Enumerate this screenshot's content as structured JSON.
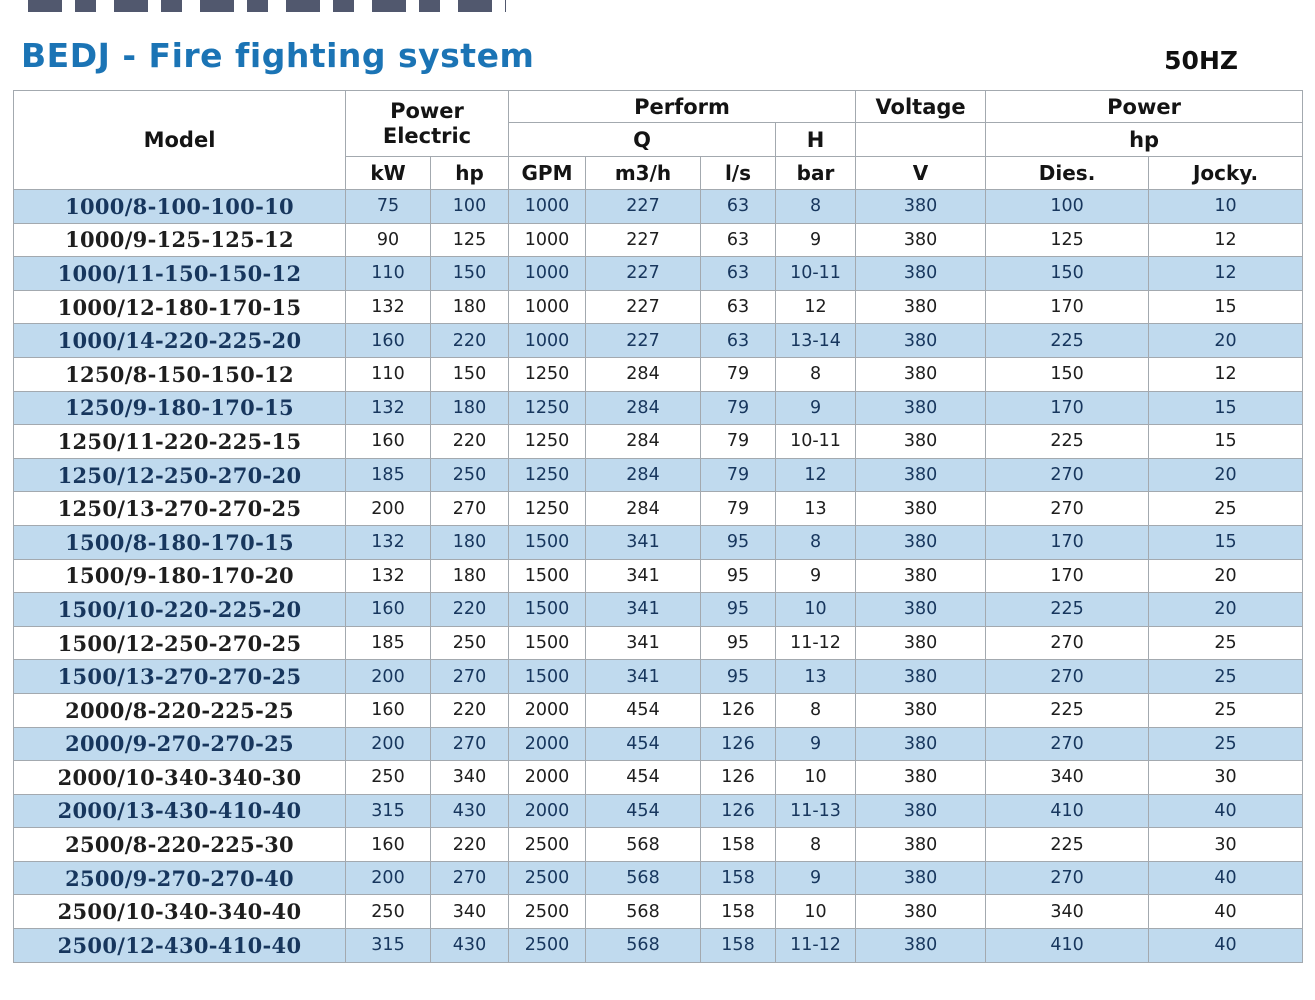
{
  "page": {
    "title": "BEDJ - Fire fighting system",
    "frequency": "50HZ"
  },
  "colors": {
    "title": "#1b74b5",
    "row_blue": "#c0daee",
    "row_blue_text": "#17365d",
    "border": "#a3a9af"
  },
  "table": {
    "header": {
      "model": "Model",
      "power_electric_line1": "Power",
      "power_electric_line2": "Electric",
      "perform": "Perform",
      "q": "Q",
      "h": "H",
      "voltage": "Voltage",
      "power": "Power",
      "hp_group": "hp",
      "units": [
        "kW",
        "hp",
        "GPM",
        "m3/h",
        "l/s",
        "bar",
        "V",
        "Dies.",
        "Jocky."
      ]
    },
    "rows": [
      [
        "1000/8-100-100-10",
        "75",
        "100",
        "1000",
        "227",
        "63",
        "8",
        "380",
        "100",
        "10"
      ],
      [
        "1000/9-125-125-12",
        "90",
        "125",
        "1000",
        "227",
        "63",
        "9",
        "380",
        "125",
        "12"
      ],
      [
        "1000/11-150-150-12",
        "110",
        "150",
        "1000",
        "227",
        "63",
        "10-11",
        "380",
        "150",
        "12"
      ],
      [
        "1000/12-180-170-15",
        "132",
        "180",
        "1000",
        "227",
        "63",
        "12",
        "380",
        "170",
        "15"
      ],
      [
        "1000/14-220-225-20",
        "160",
        "220",
        "1000",
        "227",
        "63",
        "13-14",
        "380",
        "225",
        "20"
      ],
      [
        "1250/8-150-150-12",
        "110",
        "150",
        "1250",
        "284",
        "79",
        "8",
        "380",
        "150",
        "12"
      ],
      [
        "1250/9-180-170-15",
        "132",
        "180",
        "1250",
        "284",
        "79",
        "9",
        "380",
        "170",
        "15"
      ],
      [
        "1250/11-220-225-15",
        "160",
        "220",
        "1250",
        "284",
        "79",
        "10-11",
        "380",
        "225",
        "15"
      ],
      [
        "1250/12-250-270-20",
        "185",
        "250",
        "1250",
        "284",
        "79",
        "12",
        "380",
        "270",
        "20"
      ],
      [
        "1250/13-270-270-25",
        "200",
        "270",
        "1250",
        "284",
        "79",
        "13",
        "380",
        "270",
        "25"
      ],
      [
        "1500/8-180-170-15",
        "132",
        "180",
        "1500",
        "341",
        "95",
        "8",
        "380",
        "170",
        "15"
      ],
      [
        "1500/9-180-170-20",
        "132",
        "180",
        "1500",
        "341",
        "95",
        "9",
        "380",
        "170",
        "20"
      ],
      [
        "1500/10-220-225-20",
        "160",
        "220",
        "1500",
        "341",
        "95",
        "10",
        "380",
        "225",
        "20"
      ],
      [
        "1500/12-250-270-25",
        "185",
        "250",
        "1500",
        "341",
        "95",
        "11-12",
        "380",
        "270",
        "25"
      ],
      [
        "1500/13-270-270-25",
        "200",
        "270",
        "1500",
        "341",
        "95",
        "13",
        "380",
        "270",
        "25"
      ],
      [
        "2000/8-220-225-25",
        "160",
        "220",
        "2000",
        "454",
        "126",
        "8",
        "380",
        "225",
        "25"
      ],
      [
        "2000/9-270-270-25",
        "200",
        "270",
        "2000",
        "454",
        "126",
        "9",
        "380",
        "270",
        "25"
      ],
      [
        "2000/10-340-340-30",
        "250",
        "340",
        "2000",
        "454",
        "126",
        "10",
        "380",
        "340",
        "30"
      ],
      [
        "2000/13-430-410-40",
        "315",
        "430",
        "2000",
        "454",
        "126",
        "11-13",
        "380",
        "410",
        "40"
      ],
      [
        "2500/8-220-225-30",
        "160",
        "220",
        "2500",
        "568",
        "158",
        "8",
        "380",
        "225",
        "30"
      ],
      [
        "2500/9-270-270-40",
        "200",
        "270",
        "2500",
        "568",
        "158",
        "9",
        "380",
        "270",
        "40"
      ],
      [
        "2500/10-340-340-40",
        "250",
        "340",
        "2500",
        "568",
        "158",
        "10",
        "380",
        "340",
        "40"
      ],
      [
        "2500/12-430-410-40",
        "315",
        "430",
        "2500",
        "568",
        "158",
        "11-12",
        "380",
        "410",
        "40"
      ]
    ]
  }
}
